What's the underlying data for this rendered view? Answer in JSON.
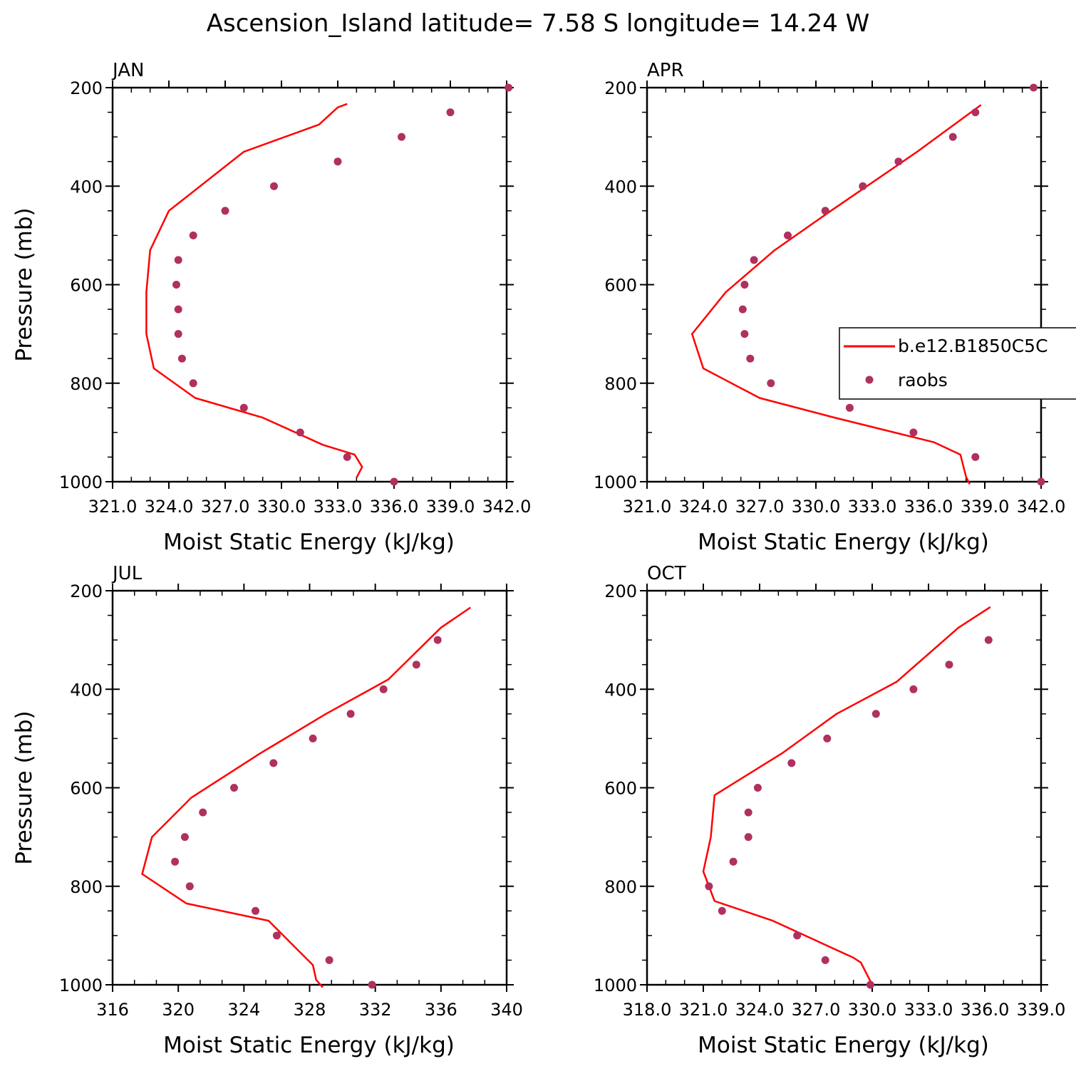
{
  "figure": {
    "title": "Ascension_Island  latitude= 7.58 S longitude= 14.24 W"
  },
  "legend": {
    "model_label": "b.e12.B1850C5C",
    "obs_label": "raobs",
    "model_color": "#ff0000",
    "obs_color": "#b03060"
  },
  "chart_data": [
    {
      "type": "line",
      "panel": "JAN",
      "title": "JAN",
      "xlabel": "Moist Static Energy (kJ/kg)",
      "ylabel": "Pressure (mb)",
      "xlim": [
        321,
        342
      ],
      "ylim": [
        1000,
        200
      ],
      "y_reversed": true,
      "xticks": [
        "321.0",
        "324.0",
        "327.0",
        "330.0",
        "333.0",
        "336.0",
        "339.0",
        "342.0"
      ],
      "yticks": [
        "200",
        "400",
        "600",
        "800",
        "1000"
      ],
      "series": [
        {
          "name": "b.e12.B1850C5C",
          "kind": "line",
          "x": [
            334.0,
            334.3,
            333.9,
            332.2,
            329.0,
            325.4,
            323.2,
            322.8,
            322.8,
            323.0,
            324.0,
            328.0,
            332.0,
            333.0,
            333.5
          ],
          "y": [
            992,
            970,
            945,
            925,
            870,
            830,
            770,
            700,
            615,
            530,
            450,
            330,
            275,
            240,
            233
          ]
        },
        {
          "name": "raobs",
          "kind": "points",
          "x": [
            336.0,
            333.5,
            331.0,
            328.0,
            325.3,
            324.7,
            324.5,
            324.5,
            324.4,
            324.5,
            325.3,
            327.0,
            329.6,
            333.0,
            336.4,
            339.0,
            342.1
          ],
          "y": [
            1000,
            950,
            900,
            850,
            800,
            750,
            700,
            650,
            600,
            550,
            500,
            450,
            400,
            350,
            300,
            250,
            200
          ]
        }
      ]
    },
    {
      "type": "line",
      "panel": "APR",
      "title": "APR",
      "xlabel": "Moist Static Energy (kJ/kg)",
      "ylabel": "Pressure (mb)",
      "xlim": [
        321,
        342
      ],
      "ylim": [
        1000,
        200
      ],
      "y_reversed": true,
      "xticks": [
        "321.0",
        "324.0",
        "327.0",
        "330.0",
        "333.0",
        "336.0",
        "339.0",
        "342.0"
      ],
      "yticks": [
        "200",
        "400",
        "600",
        "800",
        "1000"
      ],
      "series": [
        {
          "name": "b.e12.B1850C5C",
          "kind": "line",
          "x": [
            338.2,
            338.0,
            337.7,
            336.3,
            331.0,
            327.0,
            324.0,
            323.4,
            325.2,
            327.8,
            330.8,
            335.4,
            338.8
          ],
          "y": [
            1005,
            990,
            945,
            920,
            870,
            830,
            770,
            700,
            615,
            530,
            450,
            330,
            235
          ]
        },
        {
          "name": "raobs",
          "kind": "points",
          "x": [
            342.0,
            338.5,
            335.2,
            331.8,
            327.6,
            326.5,
            326.2,
            326.1,
            326.2,
            326.7,
            328.5,
            330.5,
            332.5,
            334.4,
            337.3,
            338.5,
            341.6
          ],
          "y": [
            1000,
            950,
            900,
            850,
            800,
            750,
            700,
            650,
            600,
            550,
            500,
            450,
            400,
            350,
            300,
            250,
            200
          ]
        }
      ]
    },
    {
      "type": "line",
      "panel": "JUL",
      "title": "JUL",
      "xlabel": "Moist Static Energy (kJ/kg)",
      "ylabel": "Pressure (mb)",
      "xlim": [
        316,
        340
      ],
      "ylim": [
        1000,
        200
      ],
      "y_reversed": true,
      "xticks": [
        "316",
        "320",
        "324",
        "328",
        "332",
        "336",
        "340"
      ],
      "yticks": [
        "200",
        "400",
        "600",
        "800",
        "1000"
      ],
      "series": [
        {
          "name": "b.e12.B1850C5C",
          "kind": "line",
          "x": [
            328.8,
            328.4,
            328.2,
            327.3,
            325.5,
            320.5,
            317.8,
            318.4,
            320.8,
            325.0,
            329.0,
            332.8,
            336.0,
            337.8
          ],
          "y": [
            1005,
            990,
            960,
            930,
            870,
            835,
            775,
            700,
            620,
            530,
            450,
            380,
            275,
            234
          ]
        },
        {
          "name": "raobs",
          "kind": "points",
          "x": [
            331.8,
            329.2,
            326.0,
            324.7,
            320.7,
            319.8,
            320.4,
            321.5,
            323.4,
            325.8,
            328.2,
            330.5,
            332.5,
            334.5,
            335.8
          ],
          "y": [
            1000,
            950,
            900,
            850,
            800,
            750,
            700,
            650,
            600,
            550,
            500,
            450,
            400,
            350,
            300
          ]
        }
      ]
    },
    {
      "type": "line",
      "panel": "OCT",
      "title": "OCT",
      "xlabel": "Moist Static Energy (kJ/kg)",
      "ylabel": "Pressure (mb)",
      "xlim": [
        318,
        339
      ],
      "ylim": [
        1000,
        200
      ],
      "y_reversed": true,
      "xticks": [
        "318.0",
        "321.0",
        "324.0",
        "327.0",
        "330.0",
        "333.0",
        "336.0",
        "339.0"
      ],
      "yticks": [
        "200",
        "400",
        "600",
        "800",
        "1000"
      ],
      "series": [
        {
          "name": "b.e12.B1850C5C",
          "kind": "line",
          "x": [
            330.0,
            329.8,
            329.4,
            329.0,
            324.7,
            321.6,
            321.0,
            321.4,
            321.6,
            325.2,
            328.1,
            331.3,
            334.6,
            336.3
          ],
          "y": [
            1000,
            985,
            955,
            945,
            870,
            830,
            770,
            700,
            615,
            530,
            450,
            385,
            275,
            233
          ]
        },
        {
          "name": "raobs",
          "kind": "points",
          "x": [
            329.9,
            327.5,
            326.0,
            322.0,
            321.3,
            322.6,
            323.4,
            323.4,
            323.9,
            325.7,
            327.6,
            330.2,
            332.2,
            334.1,
            336.2
          ],
          "y": [
            1000,
            950,
            900,
            850,
            800,
            750,
            700,
            650,
            600,
            550,
            500,
            450,
            400,
            350,
            300
          ]
        }
      ]
    }
  ]
}
